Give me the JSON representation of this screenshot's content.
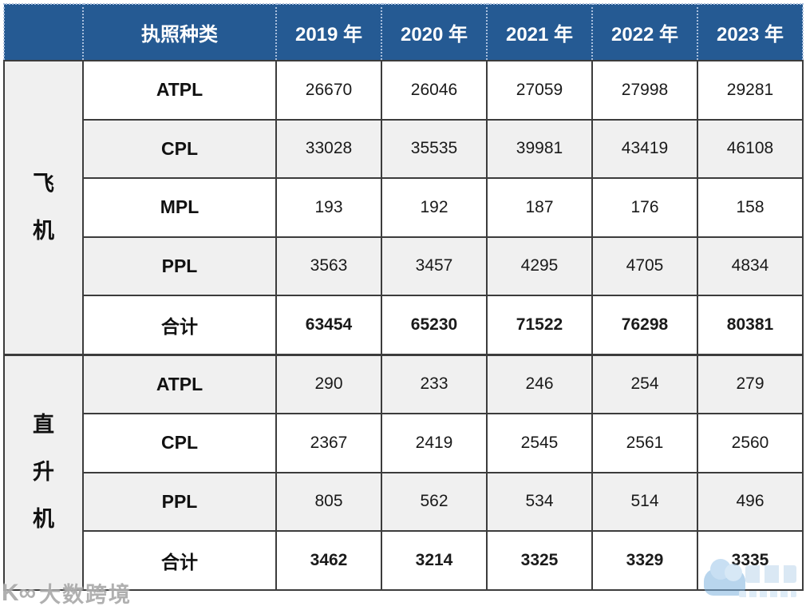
{
  "colors": {
    "header_bg": "#255a93",
    "header_text": "#ffffff",
    "row_alt_bg": "#f0f0f0",
    "border": "#3c3c3c",
    "watermark_gray": "#969696",
    "watermark_blue": "#7fb3e0"
  },
  "table": {
    "header": {
      "license_type_label": "执照种类",
      "years": [
        "2019 年",
        "2020 年",
        "2021 年",
        "2022 年",
        "2023 年"
      ]
    },
    "groups": [
      {
        "name": "飞机",
        "chars": [
          "飞",
          "机"
        ],
        "rows": [
          {
            "label": "ATPL",
            "values": [
              "26670",
              "26046",
              "27059",
              "27998",
              "29281"
            ]
          },
          {
            "label": "CPL",
            "values": [
              "33028",
              "35535",
              "39981",
              "43419",
              "46108"
            ]
          },
          {
            "label": "MPL",
            "values": [
              "193",
              "192",
              "187",
              "176",
              "158"
            ]
          },
          {
            "label": "PPL",
            "values": [
              "3563",
              "3457",
              "4295",
              "4705",
              "4834"
            ]
          },
          {
            "label": "合计",
            "values": [
              "63454",
              "65230",
              "71522",
              "76298",
              "80381"
            ]
          }
        ]
      },
      {
        "name": "直升机",
        "chars": [
          "直",
          "升",
          "机"
        ],
        "rows": [
          {
            "label": "ATPL",
            "values": [
              "290",
              "233",
              "246",
              "254",
              "279"
            ]
          },
          {
            "label": "CPL",
            "values": [
              "2367",
              "2419",
              "2545",
              "2561",
              "2560"
            ]
          },
          {
            "label": "PPL",
            "values": [
              "805",
              "562",
              "534",
              "514",
              "496"
            ]
          },
          {
            "label": "合计",
            "values": [
              "3462",
              "3214",
              "3325",
              "3329",
              "3335"
            ]
          }
        ]
      }
    ]
  },
  "watermarks": {
    "bottom_left": {
      "logo_glyph": "K∞",
      "text": "大数跨境"
    },
    "bottom_right": {
      "icon": "cloud-logo"
    }
  },
  "chart_data": {
    "type": "table",
    "title": "执照种类统计 2019-2023",
    "categories": [
      "2019",
      "2020",
      "2021",
      "2022",
      "2023"
    ],
    "series": [
      {
        "group": "飞机",
        "name": "ATPL",
        "values": [
          26670,
          26046,
          27059,
          27998,
          29281
        ]
      },
      {
        "group": "飞机",
        "name": "CPL",
        "values": [
          33028,
          35535,
          39981,
          43419,
          46108
        ]
      },
      {
        "group": "飞机",
        "name": "MPL",
        "values": [
          193,
          192,
          187,
          176,
          158
        ]
      },
      {
        "group": "飞机",
        "name": "PPL",
        "values": [
          3563,
          3457,
          4295,
          4705,
          4834
        ]
      },
      {
        "group": "飞机",
        "name": "合计",
        "values": [
          63454,
          65230,
          71522,
          76298,
          80381
        ]
      },
      {
        "group": "直升机",
        "name": "ATPL",
        "values": [
          290,
          233,
          246,
          254,
          279
        ]
      },
      {
        "group": "直升机",
        "name": "CPL",
        "values": [
          2367,
          2419,
          2545,
          2561,
          2560
        ]
      },
      {
        "group": "直升机",
        "name": "PPL",
        "values": [
          805,
          562,
          534,
          514,
          496
        ]
      },
      {
        "group": "直升机",
        "name": "合计",
        "values": [
          3462,
          3214,
          3325,
          3329,
          3335
        ]
      }
    ]
  }
}
